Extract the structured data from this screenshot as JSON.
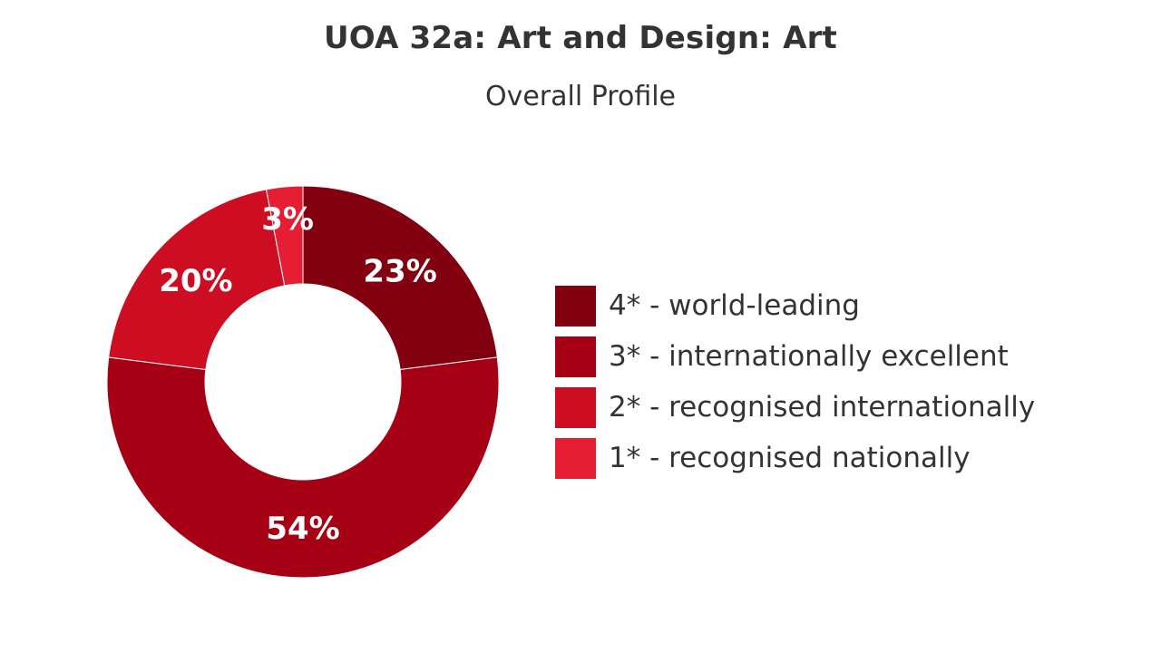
{
  "header": {
    "title": "UOA 32a: Art and Design: Art",
    "subtitle": "Overall Profile"
  },
  "chart_data": {
    "type": "pie",
    "style": "donut",
    "title": "UOA 32a: Art and Design: Art",
    "subtitle": "Overall Profile",
    "categories": [
      "4* - world-leading",
      "3* - internationally excellent",
      "2* - recognised internationally",
      "1* - recognised nationally"
    ],
    "values": [
      23,
      54,
      20,
      3
    ],
    "data_labels": [
      "23%",
      "54%",
      "20%",
      "3%"
    ],
    "colors": [
      "#820010",
      "#A60014",
      "#CC0D22",
      "#E61E34"
    ],
    "legend_placement": "right"
  }
}
